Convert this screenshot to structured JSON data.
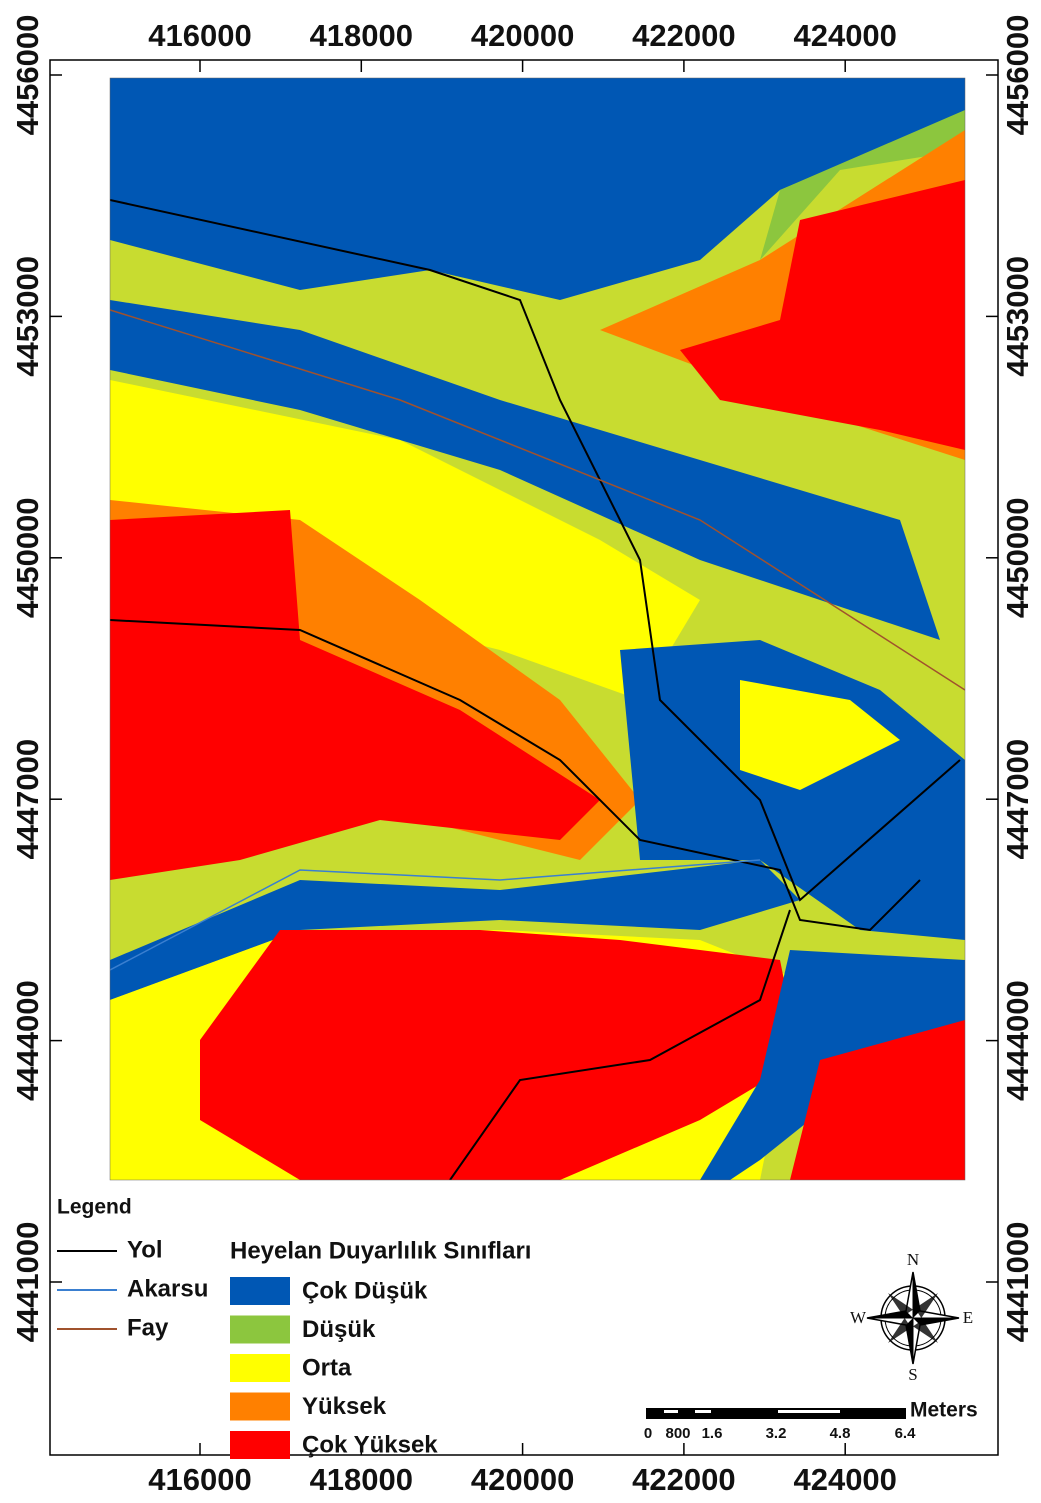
{
  "map": {
    "x_ticks": [
      416000,
      418000,
      420000,
      422000,
      424000
    ],
    "y_ticks": [
      4456000,
      4453000,
      4450000,
      4447000,
      4444000,
      4441000
    ],
    "legend": {
      "title": "Legend",
      "lines": [
        {
          "label": "Yol",
          "color": "#000000"
        },
        {
          "label": "Akarsu",
          "color": "#3a7fd0"
        },
        {
          "label": "Fay",
          "color": "#a0522d"
        }
      ],
      "classes_title": "Heyelan Duyarlılık Sınıfları",
      "classes": [
        {
          "label": "Çok Düşük",
          "color": "#0057b4"
        },
        {
          "label": "Düşük",
          "color": "#8cc63e"
        },
        {
          "label": "Orta",
          "color": "#ffff00"
        },
        {
          "label": "Yüksek",
          "color": "#ff8000"
        },
        {
          "label": "Çok Yüksek",
          "color": "#ff0000"
        }
      ]
    },
    "scale_bar": {
      "labels": [
        0,
        800,
        1.6,
        3.2,
        4.8,
        6.4
      ],
      "unit": "Meters"
    },
    "compass": {
      "north": "N",
      "east": "E",
      "south": "S",
      "west": "W"
    }
  }
}
